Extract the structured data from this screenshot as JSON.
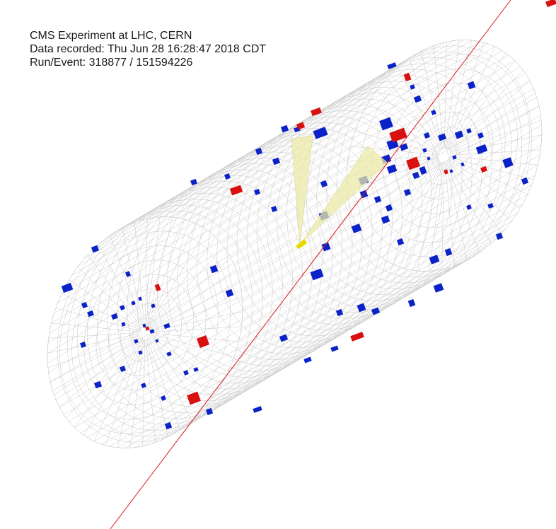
{
  "caption": {
    "line1": "CMS Experiment at LHC, CERN",
    "line2": "Data recorded: Thu Jun 28 16:28:47 2018 CDT",
    "line3": "Run/Event: 318877 / 151594226"
  },
  "colors": {
    "background": "#ffffff",
    "detector_mesh": "#c8c8c8",
    "hcal_deposit": "#0a22c8",
    "ecal_deposit": "#d81010",
    "jet_cone": "#ece9a8",
    "track": "#e01818",
    "vertex": "#e8d800"
  }
}
